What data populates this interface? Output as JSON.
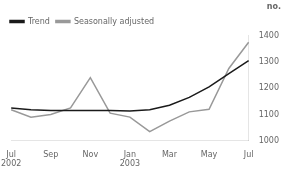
{
  "chart_data": {
    "type": "line",
    "y_label": "no.",
    "categories": [
      "Jul\n2002",
      null,
      "Sep",
      null,
      "Nov",
      null,
      "Jan\n2003",
      null,
      "Mar",
      null,
      "May",
      null,
      "Jul"
    ],
    "series": [
      {
        "name": "Trend",
        "color": "#1a1a1a",
        "values": [
          1125,
          1118,
          1115,
          1115,
          1115,
          1115,
          1113,
          1118,
          1135,
          1165,
          1205,
          1255,
          1305
        ]
      },
      {
        "name": "Seasonally adjusted",
        "color": "#999999",
        "values": [
          1118,
          1090,
          1100,
          1125,
          1240,
          1105,
          1090,
          1035,
          1075,
          1110,
          1120,
          1275,
          1375
        ]
      }
    ],
    "ylim": [
      1000,
      1400
    ],
    "yticks": [
      1000,
      1100,
      1200,
      1300,
      1400
    ],
    "grid": false,
    "legend": "upper left"
  }
}
